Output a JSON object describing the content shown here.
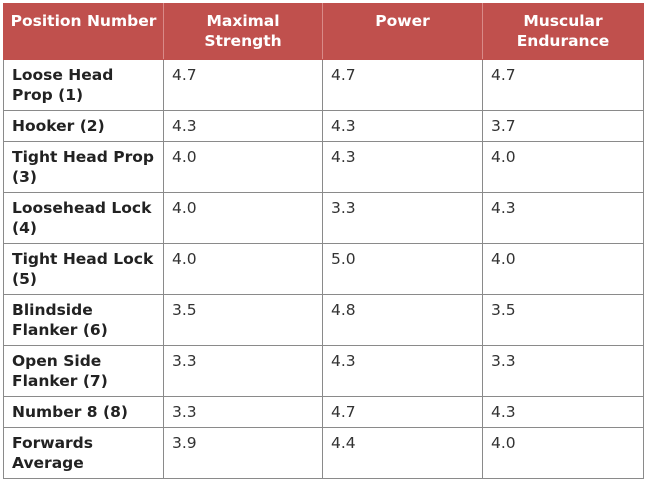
{
  "headers": [
    "Position Number",
    "Maximal Strength",
    "Power",
    "Muscular Endurance"
  ],
  "rows": [
    {
      "position": "Loose Head Prop (1)",
      "strength": "4.7",
      "power": "4.7",
      "endurance": "4.7"
    },
    {
      "position": "Hooker (2)",
      "strength": "4.3",
      "power": "4.3",
      "endurance": "3.7"
    },
    {
      "position": "Tight Head Prop (3)",
      "strength": "4.0",
      "power": "4.3",
      "endurance": "4.0"
    },
    {
      "position": "Loosehead Lock (4)",
      "strength": "4.0",
      "power": "3.3",
      "endurance": "4.3"
    },
    {
      "position": "Tight Head Lock (5)",
      "strength": "4.0",
      "power": "5.0",
      "endurance": "4.0"
    },
    {
      "position": "Blindside Flanker (6)",
      "strength": "3.5",
      "power": "4.8",
      "endurance": "3.5"
    },
    {
      "position": "Open Side Flanker (7)",
      "strength": "3.3",
      "power": "4.3",
      "endurance": "3.3"
    },
    {
      "position": "Number 8 (8)",
      "strength": "3.3",
      "power": "4.7",
      "endurance": "4.3"
    },
    {
      "position": "Forwards Average",
      "strength": "3.9",
      "power": "4.4",
      "endurance": "4.0"
    }
  ]
}
